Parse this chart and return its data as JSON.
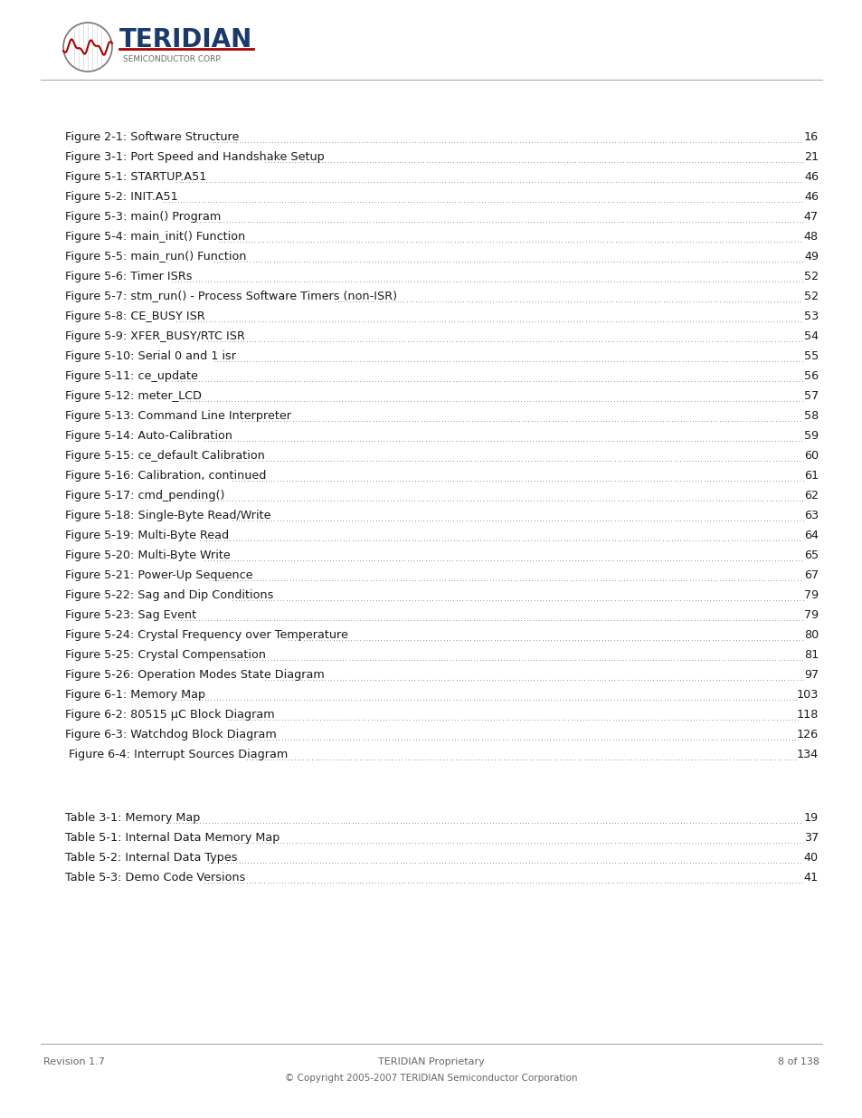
{
  "figures": [
    [
      "Figure 2-1: Software Structure",
      "16"
    ],
    [
      "Figure 3-1: Port Speed and Handshake Setup",
      "21"
    ],
    [
      "Figure 5-1: STARTUP.A51",
      "46"
    ],
    [
      "Figure 5-2: INIT.A51",
      "46"
    ],
    [
      "Figure 5-3: main() Program",
      "47"
    ],
    [
      "Figure 5-4: main_init() Function",
      "48"
    ],
    [
      "Figure 5-5: main_run() Function",
      "49"
    ],
    [
      "Figure 5-6: Timer ISRs",
      "52"
    ],
    [
      "Figure 5-7: stm_run() - Process Software Timers (non-ISR)",
      "52"
    ],
    [
      "Figure 5-8: CE_BUSY ISR",
      "53"
    ],
    [
      "Figure 5-9: XFER_BUSY/RTC ISR",
      "54"
    ],
    [
      "Figure 5-10: Serial 0 and 1 isr",
      "55"
    ],
    [
      "Figure 5-11: ce_update",
      "56"
    ],
    [
      "Figure 5-12: meter_LCD",
      "57"
    ],
    [
      "Figure 5-13: Command Line Interpreter",
      "58"
    ],
    [
      "Figure 5-14: Auto-Calibration",
      "59"
    ],
    [
      "Figure 5-15: ce_default Calibration",
      "60"
    ],
    [
      "Figure 5-16: Calibration, continued",
      "61"
    ],
    [
      "Figure 5-17: cmd_pending()",
      "62"
    ],
    [
      "Figure 5-18: Single-Byte Read/Write",
      "63"
    ],
    [
      "Figure 5-19: Multi-Byte Read",
      "64"
    ],
    [
      "Figure 5-20: Multi-Byte Write",
      "65"
    ],
    [
      "Figure 5-21: Power-Up Sequence",
      "67"
    ],
    [
      "Figure 5-22: Sag and Dip Conditions",
      "79"
    ],
    [
      "Figure 5-23: Sag Event",
      "79"
    ],
    [
      "Figure 5-24: Crystal Frequency over Temperature",
      "80"
    ],
    [
      "Figure 5-25: Crystal Compensation",
      "81"
    ],
    [
      "Figure 5-26: Operation Modes State Diagram",
      "97"
    ],
    [
      "Figure 6-1: Memory Map",
      "103"
    ],
    [
      "Figure 6-2: 80515 μC Block Diagram",
      "118"
    ],
    [
      "Figure 6-3: Watchdog Block Diagram",
      "126"
    ],
    [
      " Figure 6-4: Interrupt Sources Diagram",
      "134"
    ]
  ],
  "tables": [
    [
      "Table 3-1: Memory Map",
      "19"
    ],
    [
      "Table 5-1: Internal Data Memory Map",
      "37"
    ],
    [
      "Table 5-2: Internal Data Types",
      "40"
    ],
    [
      "Table 5-3: Demo Code Versions",
      "41"
    ]
  ],
  "footer_left": "Revision 1.7",
  "footer_center": "TERIDIAN Proprietary",
  "footer_right": "8 of 138",
  "footer_copyright": "© Copyright 2005-2007 TERIDIAN Semiconductor Corporation",
  "bg_color": "#ffffff",
  "text_color": "#1a1a1a",
  "dot_color": "#555555",
  "header_line_color": "#aaaaaa",
  "footer_line_color": "#aaaaaa",
  "footer_text_color": "#666666",
  "logo_blue": "#1a3a6b",
  "logo_red": "#aa0000",
  "logo_gray": "#666666"
}
